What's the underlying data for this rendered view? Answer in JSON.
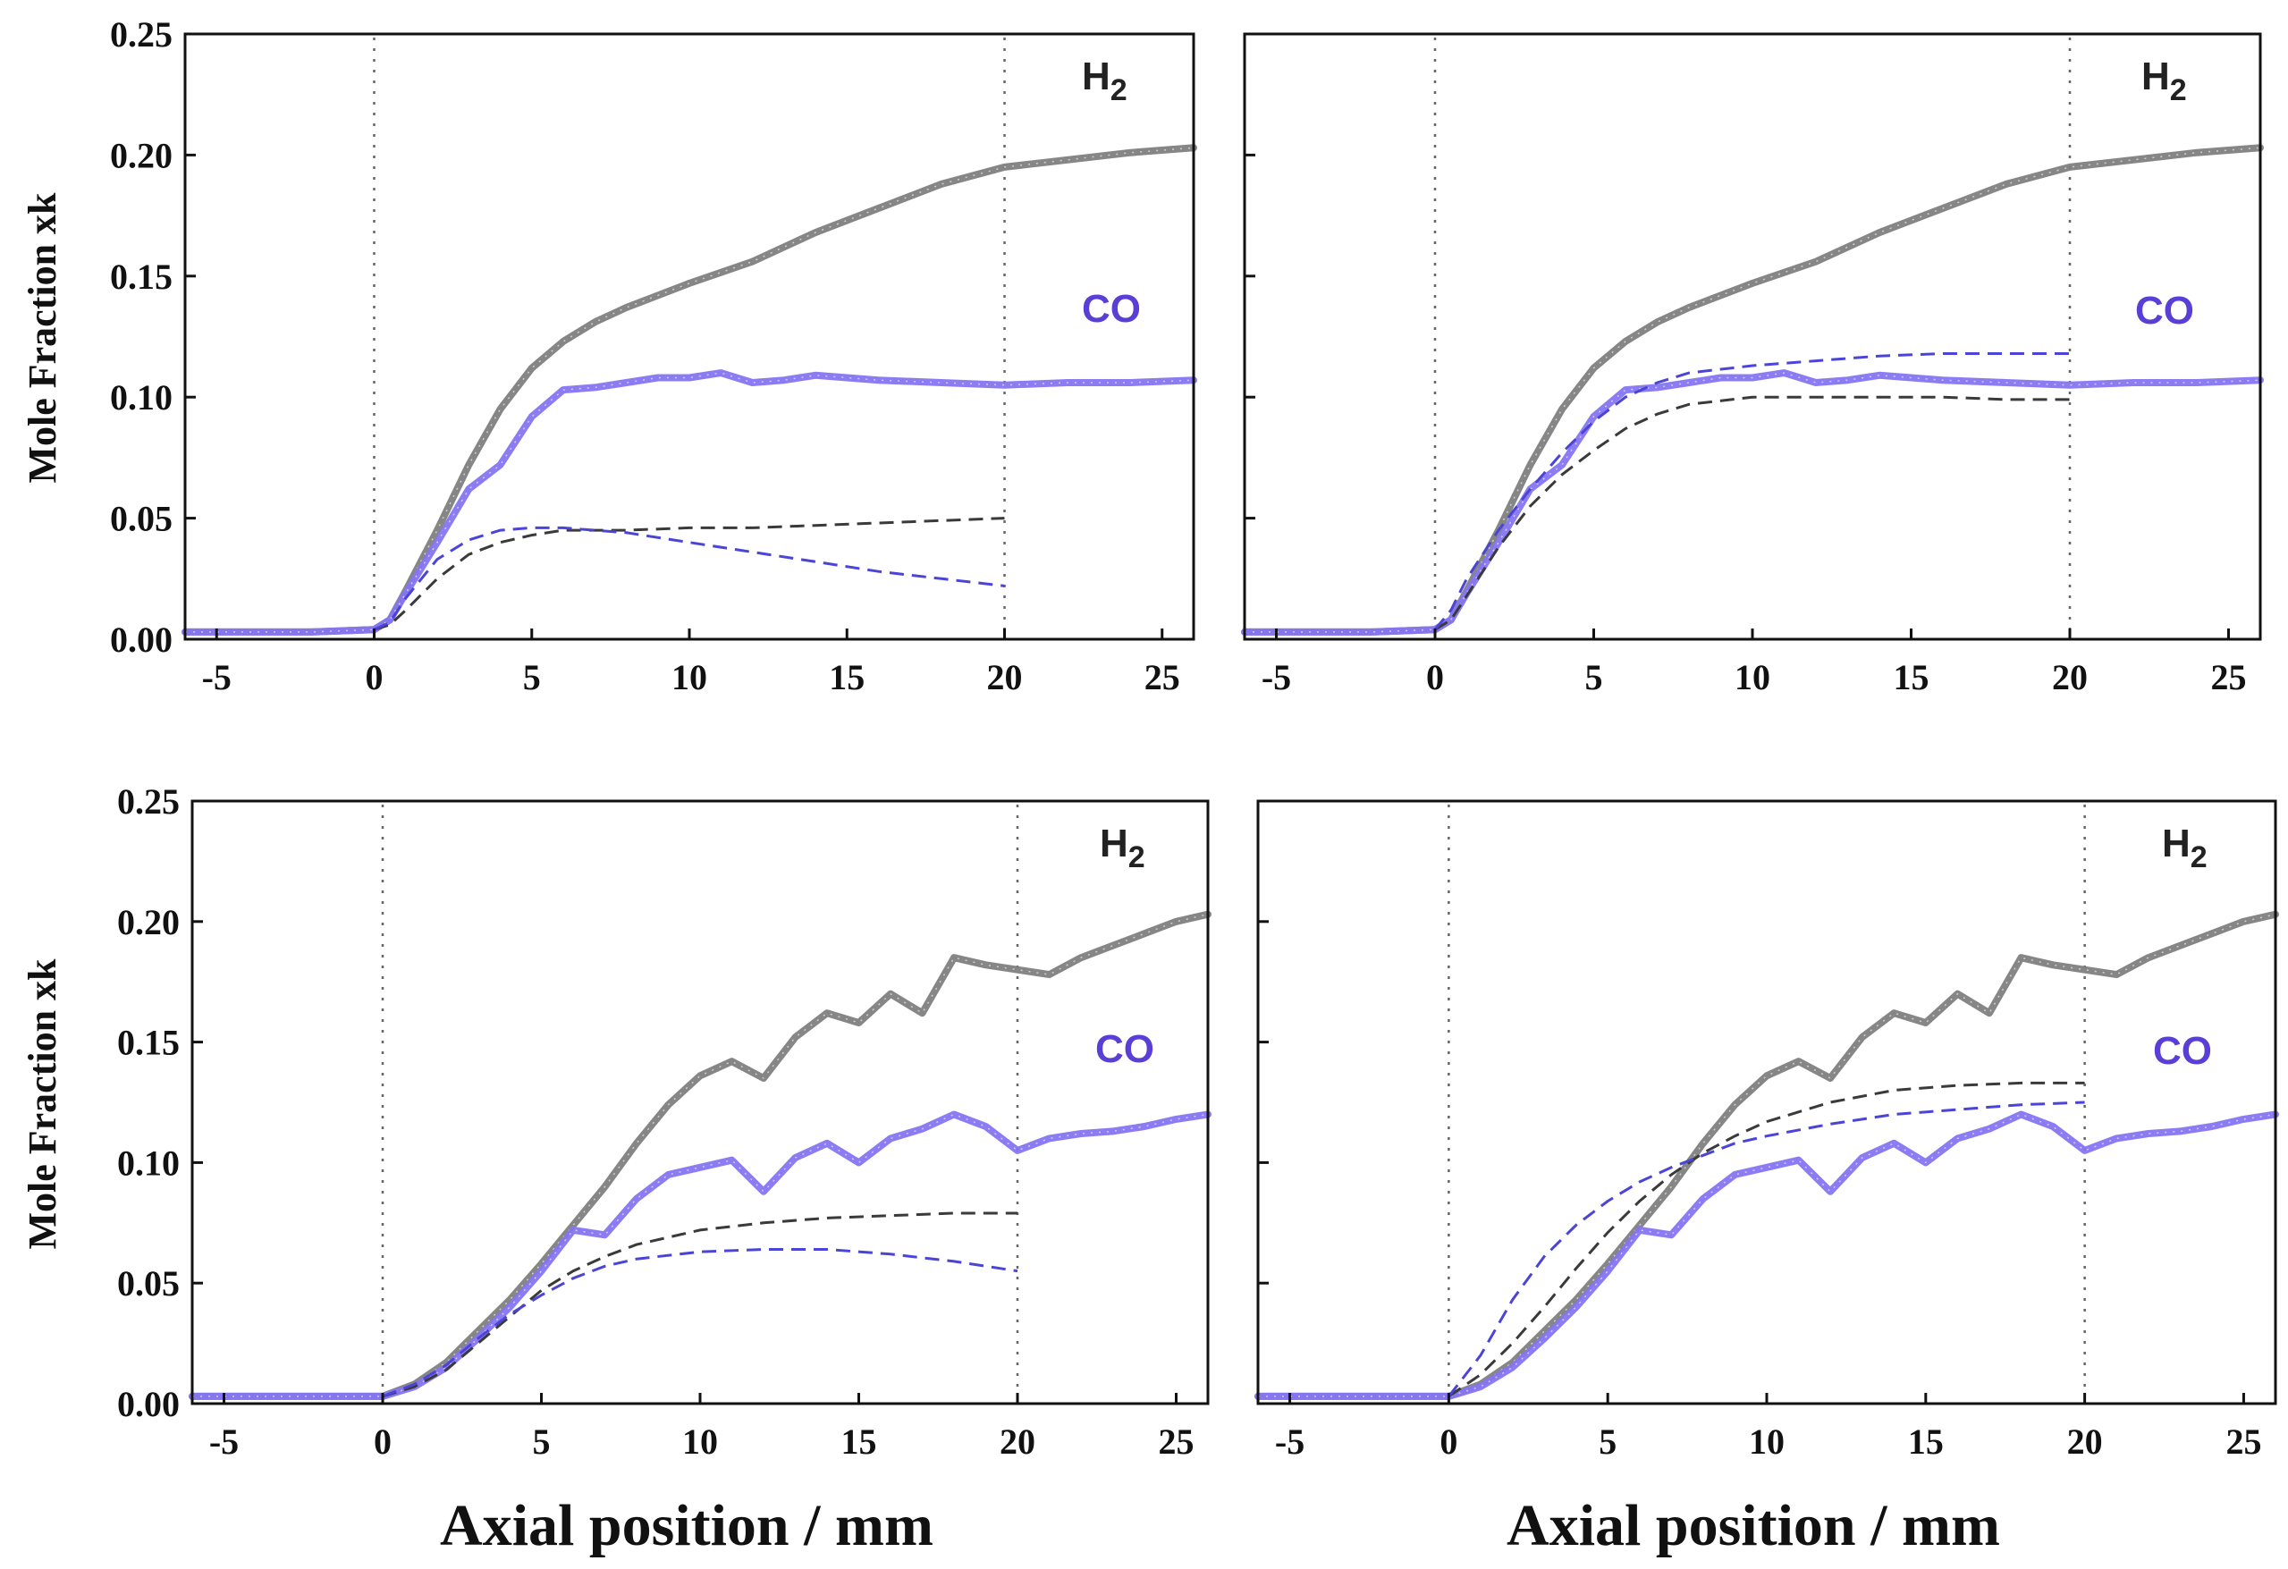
{
  "colors": {
    "h2_measured": "#7f7f7f",
    "co_measured": "#8675f2",
    "h2_model": "#3a3a3a",
    "co_model": "#4b44d8",
    "h2_label": "#222222",
    "co_label": "#5a3fd6"
  },
  "labels": {
    "h2": "H",
    "h2_sub": "2",
    "co": "CO",
    "y_axis": "Mole Fraction xk",
    "x_axis": "Axial position / mm"
  },
  "chart_data": [
    {
      "type": "line",
      "panel": "top-left",
      "xlabel": "",
      "ylabel": "Mole Fraction xk",
      "xlim": [
        -6,
        26
      ],
      "ylim": [
        0,
        0.25
      ],
      "xticks": [
        -5,
        0,
        5,
        10,
        15,
        20,
        25
      ],
      "yticks": [
        "0.00",
        "0.05",
        "0.10",
        "0.15",
        "0.20",
        "0.25"
      ],
      "reference_lines_x": [
        0,
        20
      ],
      "series": [
        {
          "name": "H2 measured",
          "style": "measured",
          "x": [
            -6,
            -5,
            -2,
            0,
            0.5,
            1,
            2,
            3,
            4,
            5,
            6,
            7,
            8,
            10,
            12,
            14,
            16,
            18,
            20,
            22,
            24,
            26
          ],
          "y": [
            0.003,
            0.003,
            0.003,
            0.004,
            0.008,
            0.02,
            0.045,
            0.072,
            0.095,
            0.112,
            0.123,
            0.131,
            0.137,
            0.147,
            0.156,
            0.168,
            0.178,
            0.188,
            0.195,
            0.198,
            0.201,
            0.203
          ]
        },
        {
          "name": "CO measured",
          "style": "measured",
          "x": [
            -6,
            -5,
            -2,
            0,
            0.5,
            1,
            2,
            3,
            4,
            5,
            6,
            7,
            8,
            9,
            10,
            11,
            12,
            13,
            14,
            16,
            18,
            20,
            22,
            24,
            26
          ],
          "y": [
            0.003,
            0.003,
            0.003,
            0.004,
            0.008,
            0.019,
            0.04,
            0.062,
            0.072,
            0.092,
            0.103,
            0.104,
            0.106,
            0.108,
            0.108,
            0.11,
            0.106,
            0.107,
            0.109,
            0.107,
            0.106,
            0.105,
            0.106,
            0.106,
            0.107
          ]
        },
        {
          "name": "H2 model",
          "style": "model",
          "x": [
            0,
            0.5,
            1,
            2,
            3,
            4,
            5,
            6,
            8,
            10,
            12,
            14,
            16,
            18,
            20
          ],
          "y": [
            0.004,
            0.006,
            0.012,
            0.025,
            0.035,
            0.04,
            0.043,
            0.045,
            0.045,
            0.046,
            0.046,
            0.047,
            0.048,
            0.049,
            0.05
          ]
        },
        {
          "name": "CO model",
          "style": "model",
          "x": [
            0,
            0.5,
            1,
            2,
            3,
            4,
            5,
            6,
            7,
            8,
            10,
            12,
            14,
            16,
            18,
            20
          ],
          "y": [
            0.004,
            0.007,
            0.017,
            0.033,
            0.041,
            0.045,
            0.046,
            0.046,
            0.045,
            0.044,
            0.04,
            0.036,
            0.032,
            0.028,
            0.025,
            0.022
          ]
        }
      ]
    },
    {
      "type": "line",
      "panel": "top-right",
      "xlabel": "",
      "ylabel": "",
      "xlim": [
        -6,
        26
      ],
      "ylim": [
        0,
        0.25
      ],
      "xticks": [
        -5,
        0,
        5,
        10,
        15,
        20,
        25
      ],
      "yticks": [],
      "reference_lines_x": [
        0,
        20
      ],
      "series": [
        {
          "name": "H2 measured",
          "style": "measured",
          "x": [
            -6,
            -5,
            -2,
            0,
            0.5,
            1,
            2,
            3,
            4,
            5,
            6,
            7,
            8,
            10,
            12,
            14,
            16,
            18,
            20,
            22,
            24,
            26
          ],
          "y": [
            0.003,
            0.003,
            0.003,
            0.004,
            0.008,
            0.02,
            0.045,
            0.072,
            0.095,
            0.112,
            0.123,
            0.131,
            0.137,
            0.147,
            0.156,
            0.168,
            0.178,
            0.188,
            0.195,
            0.198,
            0.201,
            0.203
          ]
        },
        {
          "name": "CO measured",
          "style": "measured",
          "x": [
            -6,
            -5,
            -2,
            0,
            0.5,
            1,
            2,
            3,
            4,
            5,
            6,
            7,
            8,
            9,
            10,
            11,
            12,
            13,
            14,
            16,
            18,
            20,
            22,
            24,
            26
          ],
          "y": [
            0.003,
            0.003,
            0.003,
            0.004,
            0.008,
            0.019,
            0.04,
            0.062,
            0.072,
            0.092,
            0.103,
            0.104,
            0.106,
            0.108,
            0.108,
            0.11,
            0.106,
            0.107,
            0.109,
            0.107,
            0.106,
            0.105,
            0.106,
            0.106,
            0.107
          ]
        },
        {
          "name": "H2 model",
          "style": "model",
          "x": [
            0,
            0.5,
            1,
            2,
            3,
            4,
            5,
            6,
            7,
            8,
            10,
            12,
            14,
            16,
            18,
            20
          ],
          "y": [
            0.004,
            0.008,
            0.018,
            0.038,
            0.055,
            0.068,
            0.078,
            0.087,
            0.093,
            0.097,
            0.1,
            0.1,
            0.1,
            0.1,
            0.099,
            0.099
          ]
        },
        {
          "name": "CO model",
          "style": "model",
          "x": [
            0,
            0.5,
            1,
            2,
            3,
            4,
            5,
            6,
            7,
            8,
            10,
            12,
            14,
            16,
            18,
            20
          ],
          "y": [
            0.004,
            0.012,
            0.025,
            0.045,
            0.062,
            0.077,
            0.09,
            0.1,
            0.106,
            0.11,
            0.113,
            0.115,
            0.117,
            0.118,
            0.118,
            0.118
          ]
        }
      ]
    },
    {
      "type": "line",
      "panel": "bottom-left",
      "xlabel": "Axial position / mm",
      "ylabel": "Mole Fraction xk",
      "xlim": [
        -6,
        26
      ],
      "ylim": [
        0,
        0.25
      ],
      "xticks": [
        -5,
        0,
        5,
        10,
        15,
        20,
        25
      ],
      "yticks": [
        "0.00",
        "0.05",
        "0.10",
        "0.15",
        "0.20",
        "0.25"
      ],
      "reference_lines_x": [
        0,
        20
      ],
      "series": [
        {
          "name": "H2 measured",
          "style": "measured",
          "x": [
            -6,
            -5,
            -2,
            0,
            1,
            2,
            3,
            4,
            5,
            6,
            7,
            8,
            9,
            10,
            11,
            12,
            13,
            14,
            15,
            16,
            17,
            18,
            19,
            20,
            21,
            22,
            23,
            24,
            25,
            26
          ],
          "y": [
            0.003,
            0.003,
            0.003,
            0.003,
            0.008,
            0.017,
            0.03,
            0.043,
            0.058,
            0.074,
            0.09,
            0.108,
            0.124,
            0.136,
            0.142,
            0.135,
            0.152,
            0.162,
            0.158,
            0.17,
            0.162,
            0.185,
            0.182,
            0.18,
            0.178,
            0.185,
            0.19,
            0.195,
            0.2,
            0.203
          ]
        },
        {
          "name": "CO measured",
          "style": "measured",
          "x": [
            -6,
            -5,
            -2,
            0,
            1,
            2,
            3,
            4,
            5,
            6,
            7,
            8,
            9,
            10,
            11,
            12,
            13,
            14,
            15,
            16,
            17,
            18,
            19,
            20,
            21,
            22,
            23,
            24,
            25,
            26
          ],
          "y": [
            0.003,
            0.003,
            0.003,
            0.003,
            0.007,
            0.015,
            0.027,
            0.04,
            0.055,
            0.072,
            0.07,
            0.085,
            0.095,
            0.098,
            0.101,
            0.088,
            0.102,
            0.108,
            0.1,
            0.11,
            0.114,
            0.12,
            0.115,
            0.105,
            0.11,
            0.112,
            0.113,
            0.115,
            0.118,
            0.12
          ]
        },
        {
          "name": "H2 model",
          "style": "model",
          "x": [
            0,
            1,
            2,
            3,
            4,
            5,
            6,
            7,
            8,
            10,
            12,
            14,
            16,
            18,
            20
          ],
          "y": [
            0.003,
            0.007,
            0.014,
            0.025,
            0.036,
            0.047,
            0.055,
            0.061,
            0.066,
            0.072,
            0.075,
            0.077,
            0.078,
            0.079,
            0.079
          ]
        },
        {
          "name": "CO model",
          "style": "model",
          "x": [
            0,
            1,
            2,
            3,
            4,
            5,
            6,
            7,
            8,
            10,
            12,
            14,
            16,
            18,
            20
          ],
          "y": [
            0.003,
            0.008,
            0.016,
            0.027,
            0.037,
            0.045,
            0.052,
            0.057,
            0.06,
            0.063,
            0.064,
            0.064,
            0.062,
            0.059,
            0.055
          ]
        }
      ]
    },
    {
      "type": "line",
      "panel": "bottom-right",
      "xlabel": "Axial position / mm",
      "ylabel": "",
      "xlim": [
        -6,
        26
      ],
      "ylim": [
        0,
        0.25
      ],
      "xticks": [
        -5,
        0,
        5,
        10,
        15,
        20,
        25
      ],
      "yticks": [],
      "reference_lines_x": [
        0,
        20
      ],
      "series": [
        {
          "name": "H2 measured",
          "style": "measured",
          "x": [
            -6,
            -5,
            -2,
            0,
            1,
            2,
            3,
            4,
            5,
            6,
            7,
            8,
            9,
            10,
            11,
            12,
            13,
            14,
            15,
            16,
            17,
            18,
            19,
            20,
            21,
            22,
            23,
            24,
            25,
            26
          ],
          "y": [
            0.003,
            0.003,
            0.003,
            0.003,
            0.008,
            0.017,
            0.03,
            0.043,
            0.058,
            0.074,
            0.09,
            0.108,
            0.124,
            0.136,
            0.142,
            0.135,
            0.152,
            0.162,
            0.158,
            0.17,
            0.162,
            0.185,
            0.182,
            0.18,
            0.178,
            0.185,
            0.19,
            0.195,
            0.2,
            0.203
          ]
        },
        {
          "name": "CO measured",
          "style": "measured",
          "x": [
            -6,
            -5,
            -2,
            0,
            1,
            2,
            3,
            4,
            5,
            6,
            7,
            8,
            9,
            10,
            11,
            12,
            13,
            14,
            15,
            16,
            17,
            18,
            19,
            20,
            21,
            22,
            23,
            24,
            25,
            26
          ],
          "y": [
            0.003,
            0.003,
            0.003,
            0.003,
            0.007,
            0.015,
            0.027,
            0.04,
            0.055,
            0.072,
            0.07,
            0.085,
            0.095,
            0.098,
            0.101,
            0.088,
            0.102,
            0.108,
            0.1,
            0.11,
            0.114,
            0.12,
            0.115,
            0.105,
            0.11,
            0.112,
            0.113,
            0.115,
            0.118,
            0.12
          ]
        },
        {
          "name": "H2 model",
          "style": "model",
          "x": [
            0,
            1,
            2,
            3,
            4,
            5,
            6,
            7,
            8,
            9,
            10,
            12,
            14,
            16,
            18,
            20
          ],
          "y": [
            0.003,
            0.012,
            0.025,
            0.04,
            0.056,
            0.071,
            0.084,
            0.095,
            0.104,
            0.111,
            0.117,
            0.125,
            0.13,
            0.132,
            0.133,
            0.133
          ]
        },
        {
          "name": "CO model",
          "style": "model",
          "x": [
            0,
            1,
            2,
            3,
            4,
            5,
            6,
            7,
            8,
            9,
            10,
            12,
            14,
            16,
            18,
            20
          ],
          "y": [
            0.003,
            0.02,
            0.043,
            0.061,
            0.074,
            0.084,
            0.092,
            0.098,
            0.103,
            0.108,
            0.111,
            0.116,
            0.12,
            0.122,
            0.124,
            0.125
          ]
        }
      ]
    }
  ]
}
